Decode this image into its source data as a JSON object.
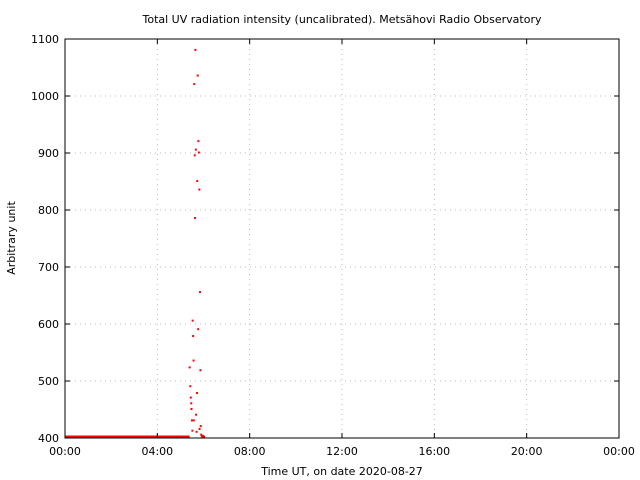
{
  "chart_data": {
    "type": "scatter",
    "title": "Total UV radiation intensity (uncalibrated). Metsähovi Radio Observatory",
    "xlabel": "Time UT, on date 2020-08-27",
    "ylabel": "Arbitrary unit",
    "x_unit": "hours",
    "xlim": [
      0,
      24
    ],
    "ylim": [
      400,
      1100
    ],
    "x_ticks": [
      {
        "value": 0,
        "label": "00:00"
      },
      {
        "value": 4,
        "label": "04:00"
      },
      {
        "value": 8,
        "label": "08:00"
      },
      {
        "value": 12,
        "label": "12:00"
      },
      {
        "value": 16,
        "label": "16:00"
      },
      {
        "value": 20,
        "label": "20:00"
      },
      {
        "value": 24,
        "label": "00:00"
      }
    ],
    "y_ticks": [
      400,
      500,
      600,
      700,
      800,
      900,
      1000,
      1100
    ],
    "grid": true,
    "legend": "none",
    "marker_color": "#ff0000",
    "series": [
      {
        "baseline": {
          "x_start": 0,
          "x_end": 5.4,
          "y": 400
        },
        "x": [
          5.4,
          5.43,
          5.45,
          5.47,
          5.48,
          5.5,
          5.52,
          5.53,
          5.55,
          5.57,
          5.58,
          5.6,
          5.62,
          5.63,
          5.65,
          5.67,
          5.68,
          5.7,
          5.72,
          5.73,
          5.75,
          5.77,
          5.78,
          5.8,
          5.82,
          5.83,
          5.85,
          5.87,
          5.88,
          5.9,
          5.93,
          5.97,
          6.0,
          6.03
        ],
        "y": [
          523,
          490,
          470,
          460,
          450,
          430,
          412,
          605,
          578,
          535,
          430,
          1020,
          895,
          785,
          1080,
          905,
          440,
          410,
          478,
          850,
          1035,
          590,
          920,
          900,
          835,
          415,
          655,
          518,
          420,
          405,
          402,
          403,
          402,
          401
        ]
      }
    ]
  }
}
